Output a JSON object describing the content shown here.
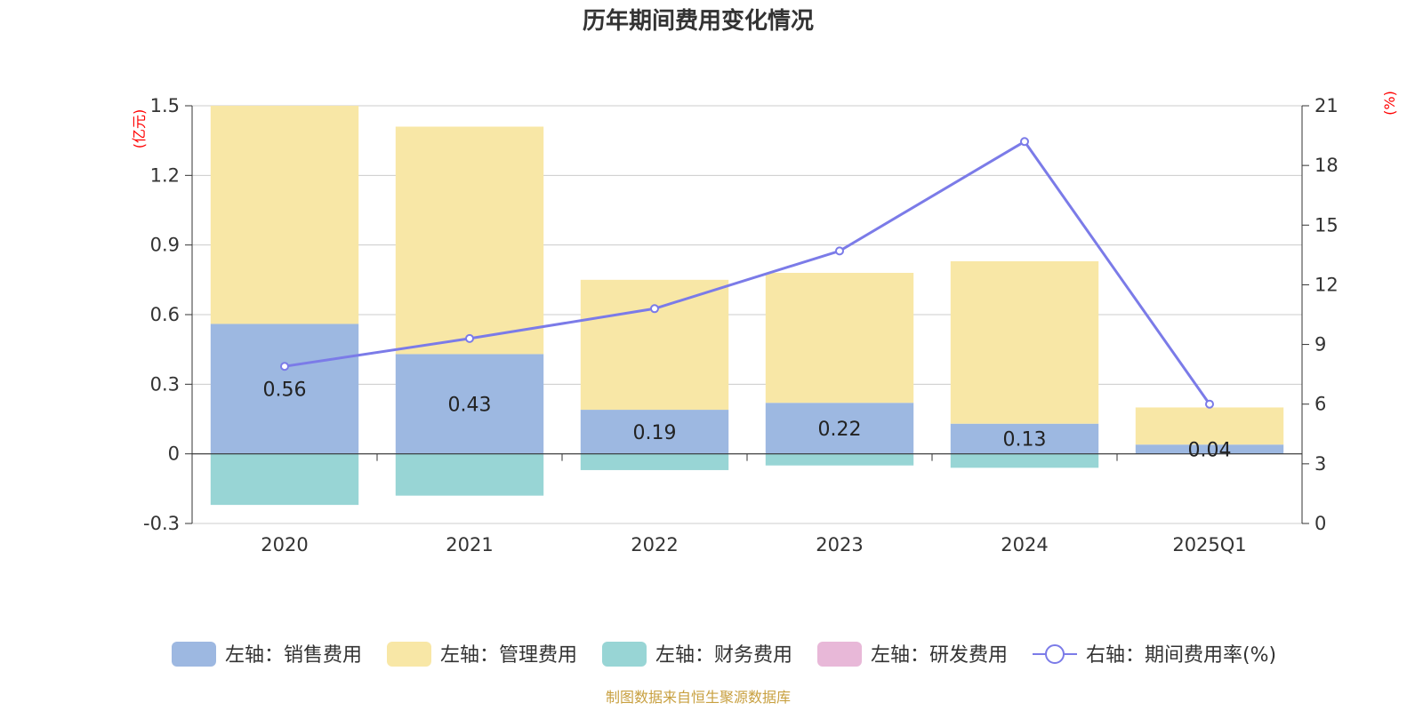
{
  "chart_data": {
    "type": "bar",
    "title": "历年期间费用变化情况",
    "categories": [
      "2020",
      "2021",
      "2022",
      "2023",
      "2024",
      "2025Q1"
    ],
    "left_axis": {
      "unit": "(亿元)",
      "ticks": [
        "-0.3",
        "0",
        "0.3",
        "0.6",
        "0.9",
        "1.2",
        "1.5"
      ],
      "min": -0.3,
      "max": 1.5
    },
    "right_axis": {
      "unit": "(%)",
      "ticks": [
        "0",
        "3",
        "6",
        "9",
        "12",
        "15",
        "18",
        "21"
      ],
      "min": 0,
      "max": 21
    },
    "series": [
      {
        "name": "左轴：销售费用",
        "color": "#9db8e1",
        "type": "bar",
        "axis": "left",
        "values": [
          0.56,
          0.43,
          0.19,
          0.22,
          0.13,
          0.04
        ],
        "labels": [
          "0.56",
          "0.43",
          "0.19",
          "0.22",
          "0.13",
          "0.04"
        ]
      },
      {
        "name": "左轴：管理费用",
        "color": "#f8e7a6",
        "type": "bar",
        "axis": "left",
        "values": [
          0.94,
          0.98,
          0.56,
          0.56,
          0.7,
          0.16
        ]
      },
      {
        "name": "左轴：财务费用",
        "color": "#98d5d5",
        "type": "bar",
        "axis": "left",
        "values": [
          -0.22,
          -0.18,
          -0.07,
          -0.05,
          -0.06,
          0
        ]
      },
      {
        "name": "左轴：研发费用",
        "color": "#e8b8d8",
        "type": "bar",
        "axis": "left",
        "values": [
          0,
          0,
          0,
          0,
          0,
          0
        ]
      },
      {
        "name": "右轴：期间费用率(%)",
        "color": "#7b7be8",
        "type": "line",
        "axis": "right",
        "values": [
          7.9,
          9.3,
          10.8,
          13.7,
          19.2,
          6.0
        ]
      }
    ],
    "grid": true,
    "legend_position": "bottom"
  },
  "source": "制图数据来自恒生聚源数据库"
}
